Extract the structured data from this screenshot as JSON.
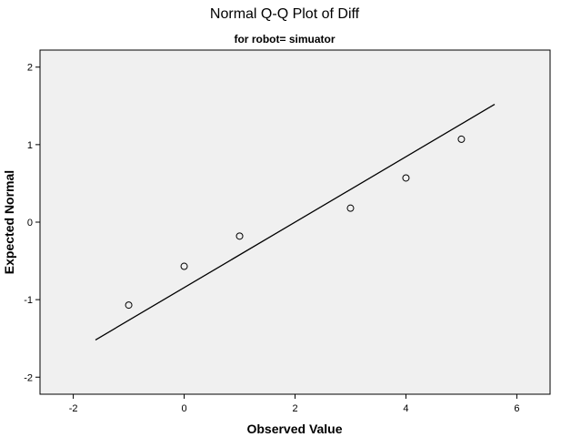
{
  "chart_data": {
    "type": "scatter",
    "title": "Normal Q-Q Plot of Diff",
    "subtitle": "for robot= simuator",
    "xlabel": "Observed Value",
    "ylabel": "Expected Normal",
    "xlim": [
      -2.6,
      6.6
    ],
    "ylim": [
      -2.22,
      2.22
    ],
    "x_ticks": [
      -2,
      0,
      2,
      4,
      6
    ],
    "y_ticks": [
      -2,
      -1,
      0,
      1,
      2
    ],
    "x_tick_labels": [
      "-2",
      "0",
      "2",
      "4",
      "6"
    ],
    "y_tick_labels": [
      "-2",
      "-1",
      "0",
      "1",
      "2"
    ],
    "grid": false,
    "marker": "open-circle",
    "plot_background": "#f0f0f0",
    "series": [
      {
        "points": [
          {
            "x": -1,
            "y": -1.07
          },
          {
            "x": 0,
            "y": -0.57
          },
          {
            "x": 1,
            "y": -0.18
          },
          {
            "x": 3,
            "y": 0.18
          },
          {
            "x": 4,
            "y": 0.57
          },
          {
            "x": 5,
            "y": 1.07
          }
        ]
      }
    ],
    "reference_line": {
      "x": [
        -1.6,
        5.6
      ],
      "y": [
        -1.52,
        1.52
      ]
    }
  }
}
